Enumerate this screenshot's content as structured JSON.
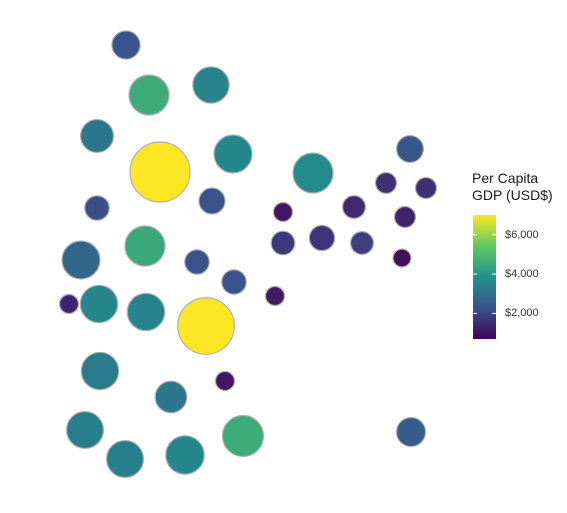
{
  "chart_data": {
    "type": "bubble-map",
    "legend": {
      "title_line1": "Per Capita",
      "title_line2": "GDP (USD$)",
      "min": 700,
      "max": 7000,
      "palette": [
        "#440154",
        "#3b528b",
        "#21918c",
        "#5ec962",
        "#fde725"
      ],
      "ticks": [
        {
          "value": 2000,
          "label": "$2,000"
        },
        {
          "value": 4000,
          "label": "$4,000"
        },
        {
          "value": 6000,
          "label": "$6,000"
        }
      ]
    },
    "bubble_outline": "#b0b0b0",
    "regions": [
      {
        "value": 2300,
        "size": 2
      },
      {
        "value": 4600,
        "size": 4
      },
      {
        "value": 3500,
        "size": 3.3
      },
      {
        "value": 3200,
        "size": 2.7
      },
      {
        "value": 7000,
        "size": 9
      },
      {
        "value": 3600,
        "size": 3.6
      },
      {
        "value": 2300,
        "size": 1.7
      },
      {
        "value": 1100,
        "size": 0.9
      },
      {
        "value": 3700,
        "size": 4
      },
      {
        "value": 4500,
        "size": 4
      },
      {
        "value": 2800,
        "size": 3.6
      },
      {
        "value": 2200,
        "size": 1.5
      },
      {
        "value": 2300,
        "size": 1.5
      },
      {
        "value": 2300,
        "size": 1.5
      },
      {
        "value": 1200,
        "size": 0.9
      },
      {
        "value": 1400,
        "size": 0.9
      },
      {
        "value": 3600,
        "size": 3.5
      },
      {
        "value": 3500,
        "size": 3.5
      },
      {
        "value": 7000,
        "size": 8
      },
      {
        "value": 3300,
        "size": 3.5
      },
      {
        "value": 3200,
        "size": 2.5
      },
      {
        "value": 1100,
        "size": 0.9
      },
      {
        "value": 3400,
        "size": 3.4
      },
      {
        "value": 3400,
        "size": 3.4
      },
      {
        "value": 3600,
        "size": 3.7
      },
      {
        "value": 4600,
        "size": 4.2
      },
      {
        "value": 800,
        "size": 0.6
      },
      {
        "value": 1800,
        "size": 1.4
      },
      {
        "value": 1700,
        "size": 1.6
      },
      {
        "value": 1500,
        "size": 1.3
      },
      {
        "value": 1900,
        "size": 1.3
      },
      {
        "value": 1600,
        "size": 1.1
      },
      {
        "value": 2400,
        "size": 1.8
      },
      {
        "value": 1600,
        "size": 1.1
      },
      {
        "value": 1400,
        "size": 1.1
      },
      {
        "value": 1000,
        "size": 0.8
      },
      {
        "value": 2500,
        "size": 2.1
      },
      {
        "value": 2500,
        "size": 2.1
      }
    ]
  }
}
